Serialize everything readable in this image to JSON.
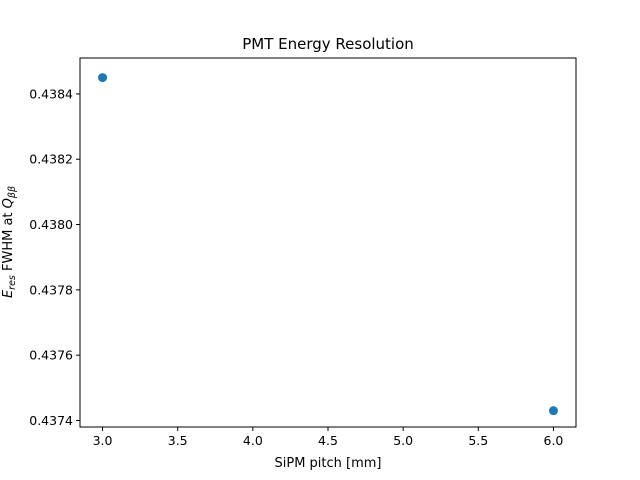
{
  "chart_data": {
    "type": "scatter",
    "title": "PMT Energy Resolution",
    "xlabel": "SiPM pitch [mm]",
    "ylabel": {
      "symbol": "E",
      "symbol_sub": "res",
      "middle": " FWHM at ",
      "q": "Q",
      "q_sub": "ββ"
    },
    "xlim": [
      2.85,
      6.15
    ],
    "ylim": [
      0.43738,
      0.43851
    ],
    "xticks": [
      3.0,
      3.5,
      4.0,
      4.5,
      5.0,
      5.5,
      6.0
    ],
    "xtick_labels": [
      "3.0",
      "3.5",
      "4.0",
      "4.5",
      "5.0",
      "5.5",
      "6.0"
    ],
    "yticks": [
      0.4374,
      0.4376,
      0.4378,
      0.438,
      0.4382,
      0.4384
    ],
    "ytick_labels": [
      "0.4374",
      "0.4376",
      "0.4378",
      "0.4380",
      "0.4382",
      "0.4384"
    ],
    "points": [
      {
        "x": 3.0,
        "y": 0.43845
      },
      {
        "x": 6.0,
        "y": 0.43743
      }
    ],
    "marker_color": "#1f77b4",
    "grid": false,
    "legend": "none"
  }
}
